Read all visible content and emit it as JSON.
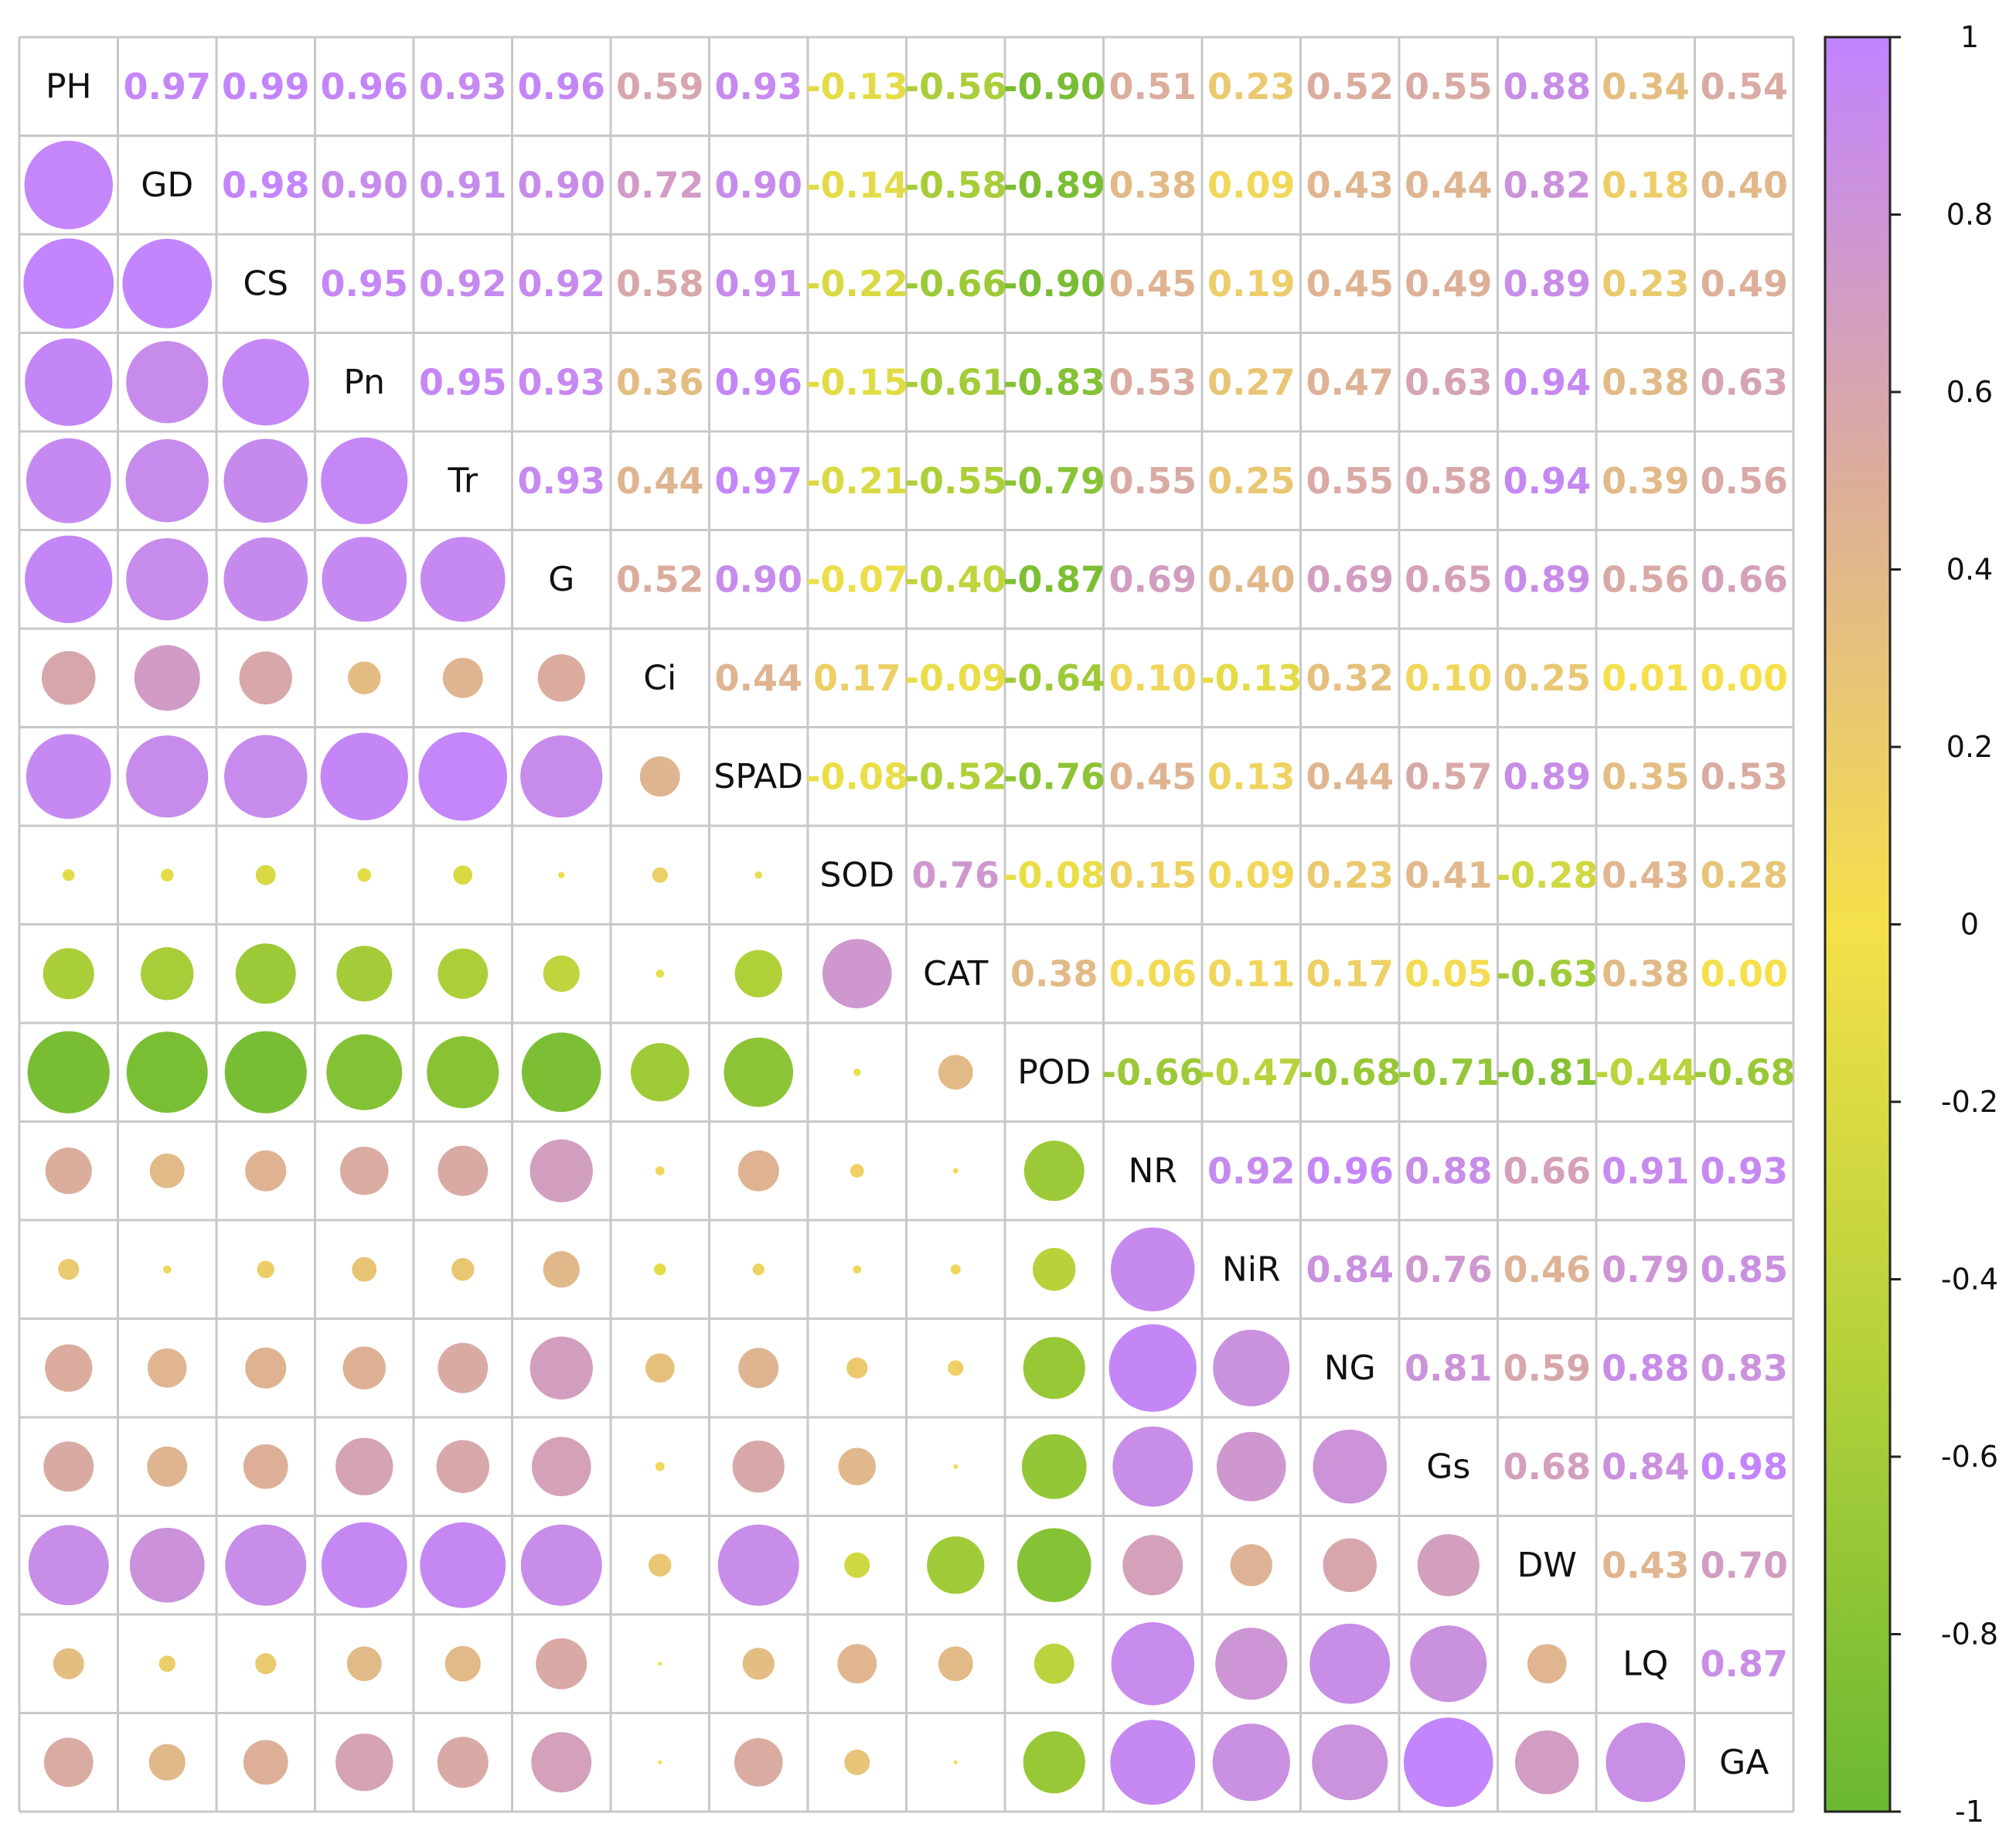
{
  "chart_data": {
    "type": "heatmap",
    "variables": [
      "PH",
      "GD",
      "CS",
      "Pn",
      "Tr",
      "G",
      "Ci",
      "SPAD",
      "SOD",
      "CAT",
      "POD",
      "NR",
      "NiR",
      "NG",
      "Gs",
      "DW",
      "LQ",
      "GA"
    ],
    "upper_values": [
      [
        "",
        "0.97",
        "0.99",
        "0.96",
        "0.93",
        "0.96",
        "0.59",
        "0.93",
        "-0.13",
        "-0.56",
        "-0.90",
        "0.51",
        "0.23",
        "0.52",
        "0.55",
        "0.88",
        "0.34",
        "0.54"
      ],
      [
        "",
        "",
        "0.98",
        "0.90",
        "0.91",
        "0.90",
        "0.72",
        "0.90",
        "-0.14",
        "-0.58",
        "-0.89",
        "0.38",
        "0.09",
        "0.43",
        "0.44",
        "0.82",
        "0.18",
        "0.40"
      ],
      [
        "",
        "",
        "",
        "0.95",
        "0.92",
        "0.92",
        "0.58",
        "0.91",
        "-0.22",
        "-0.66",
        "-0.90",
        "0.45",
        "0.19",
        "0.45",
        "0.49",
        "0.89",
        "0.23",
        "0.49"
      ],
      [
        "",
        "",
        "",
        "",
        "0.95",
        "0.93",
        "0.36",
        "0.96",
        "-0.15",
        "-0.61",
        "-0.83",
        "0.53",
        "0.27",
        "0.47",
        "0.63",
        "0.94",
        "0.38",
        "0.63"
      ],
      [
        "",
        "",
        "",
        "",
        "",
        "0.93",
        "0.44",
        "0.97",
        "-0.21",
        "-0.55",
        "-0.79",
        "0.55",
        "0.25",
        "0.55",
        "0.58",
        "0.94",
        "0.39",
        "0.56"
      ],
      [
        "",
        "",
        "",
        "",
        "",
        "",
        "0.52",
        "0.90",
        "-0.07",
        "-0.40",
        "-0.87",
        "0.69",
        "0.40",
        "0.69",
        "0.65",
        "0.89",
        "0.56",
        "0.66"
      ],
      [
        "",
        "",
        "",
        "",
        "",
        "",
        "",
        "0.44",
        "0.17",
        "-0.09",
        "-0.64",
        "0.10",
        "-0.13",
        "0.32",
        "0.10",
        "0.25",
        "0.01",
        "0.00"
      ],
      [
        "",
        "",
        "",
        "",
        "",
        "",
        "",
        "",
        "-0.08",
        "-0.52",
        "-0.76",
        "0.45",
        "0.13",
        "0.44",
        "0.57",
        "0.89",
        "0.35",
        "0.53"
      ],
      [
        "",
        "",
        "",
        "",
        "",
        "",
        "",
        "",
        "",
        "0.76",
        "-0.08",
        "0.15",
        "0.09",
        "0.23",
        "0.41",
        "-0.28",
        "0.43",
        "0.28"
      ],
      [
        "",
        "",
        "",
        "",
        "",
        "",
        "",
        "",
        "",
        "",
        "0.38",
        "0.06",
        "0.11",
        "0.17",
        "0.05",
        "-0.63",
        "0.38",
        "0.00"
      ],
      [
        "",
        "",
        "",
        "",
        "",
        "",
        "",
        "",
        "",
        "",
        "",
        "-0.66",
        "-0.47",
        "-0.68",
        "-0.71",
        "-0.81",
        "-0.44",
        "-0.68"
      ],
      [
        "",
        "",
        "",
        "",
        "",
        "",
        "",
        "",
        "",
        "",
        "",
        "",
        "0.92",
        "0.96",
        "0.88",
        "0.66",
        "0.91",
        "0.93"
      ],
      [
        "",
        "",
        "",
        "",
        "",
        "",
        "",
        "",
        "",
        "",
        "",
        "",
        "",
        "0.84",
        "0.76",
        "0.46",
        "0.79",
        "0.85"
      ],
      [
        "",
        "",
        "",
        "",
        "",
        "",
        "",
        "",
        "",
        "",
        "",
        "",
        "",
        "",
        "0.81",
        "0.59",
        "0.88",
        "0.83"
      ],
      [
        "",
        "",
        "",
        "",
        "",
        "",
        "",
        "",
        "",
        "",
        "",
        "",
        "",
        "",
        "",
        "0.68",
        "0.84",
        "0.98"
      ],
      [
        "",
        "",
        "",
        "",
        "",
        "",
        "",
        "",
        "",
        "",
        "",
        "",
        "",
        "",
        "",
        "",
        "0.43",
        "0.70"
      ],
      [
        "",
        "",
        "",
        "",
        "",
        "",
        "",
        "",
        "",
        "",
        "",
        "",
        "",
        "",
        "",
        "",
        "",
        "0.87"
      ],
      [
        "",
        "",
        "",
        "",
        "",
        "",
        "",
        "",
        "",
        "",
        "",
        "",
        "",
        "",
        "",
        "",
        "",
        ""
      ]
    ],
    "lower_display": "circle",
    "upper_display": "number",
    "colorbar": {
      "range": [
        -1,
        1
      ],
      "ticks": [
        "1",
        "0.8",
        "0.6",
        "0.4",
        "0.2",
        "0",
        "-0.2",
        "-0.4",
        "-0.6",
        "-0.8",
        "-1"
      ],
      "colors": {
        "-1": "#6ab832",
        "-0.5": "#b3d13a",
        "0": "#f5e04a",
        "0.5": "#dcae9a",
        "1": "#c283ff"
      }
    }
  }
}
